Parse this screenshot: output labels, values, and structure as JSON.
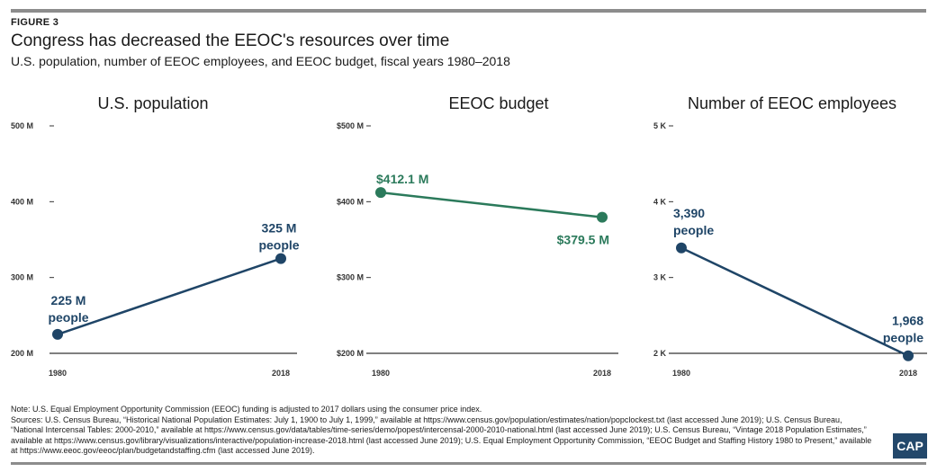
{
  "figure_label": "FIGURE 3",
  "title": "Congress has decreased the EEOC's resources over time",
  "subtitle": "U.S. population, number of EEOC employees, and EEOC budget, fiscal years 1980–2018",
  "colors": {
    "navy": "#1f4567",
    "green": "#2b7a5b",
    "axis": "#000000",
    "tick": "#333333"
  },
  "chart_data": [
    {
      "type": "line",
      "title": "U.S. population",
      "x": [
        "1980",
        "2018"
      ],
      "values": [
        225,
        325
      ],
      "unit": "million people",
      "ylim": [
        200,
        500
      ],
      "yticks": [
        200,
        300,
        400,
        500
      ],
      "ytick_labels": [
        "200 M",
        "300 M",
        "400 M",
        "500 M"
      ],
      "point_labels": [
        [
          "225 M",
          "people"
        ],
        [
          "325 M",
          "people"
        ]
      ],
      "color": "#1f4567",
      "grid": false
    },
    {
      "type": "line",
      "title": "EEOC budget",
      "x": [
        "1980",
        "2018"
      ],
      "values": [
        412.1,
        379.5
      ],
      "unit": "million dollars",
      "ylim": [
        200,
        500
      ],
      "yticks": [
        200,
        300,
        400,
        500
      ],
      "ytick_labels": [
        "$200 M",
        "$300 M",
        "$400 M",
        "$500 M"
      ],
      "point_labels": [
        [
          "$412.1 M"
        ],
        [
          "$379.5 M"
        ]
      ],
      "color": "#2b7a5b",
      "grid": false
    },
    {
      "type": "line",
      "title": "Number of EEOC employees",
      "x": [
        "1980",
        "2018"
      ],
      "values": [
        3390,
        1968
      ],
      "unit": "employees",
      "ylim": [
        2000,
        5000
      ],
      "yticks": [
        2000,
        3000,
        4000,
        5000
      ],
      "ytick_labels": [
        "2 K",
        "3 K",
        "4 K",
        "5 K"
      ],
      "point_labels": [
        [
          "3,390",
          "people"
        ],
        [
          "1,968",
          "people"
        ]
      ],
      "color": "#1f4567",
      "grid": false
    }
  ],
  "notes": [
    "Note: U.S. Equal Employment Opportunity Commission (EEOC) funding is adjusted to 2017 dollars using the consumer price index.",
    "Sources: U.S. Census Bureau, “Historical National Population Estimates: July 1, 1900 to July 1, 1999,” available at https://www.census.gov/population/estimates/nation/popclockest.txt (last accessed June 2019); U.S. Census Bureau, “National Intercensal Tables: 2000-2010,” available at https://www.census.gov/data/tables/time-series/demo/popest/intercensal-2000-2010-national.html (last accessed June 2019); U.S. Census Bureau, “Vintage 2018 Population Estimates,” available at https://www.census.gov/library/visualizations/interactive/population-increase-2018.html (last accessed June 2019); U.S. Equal Employment Opportunity Commission, “EEOC Budget and Staffing History 1980 to Present,” available at https://www.eeoc.gov/eeoc/plan/budgetandstaffing.cfm (last accessed June 2019)."
  ],
  "logo_text": "CAP"
}
